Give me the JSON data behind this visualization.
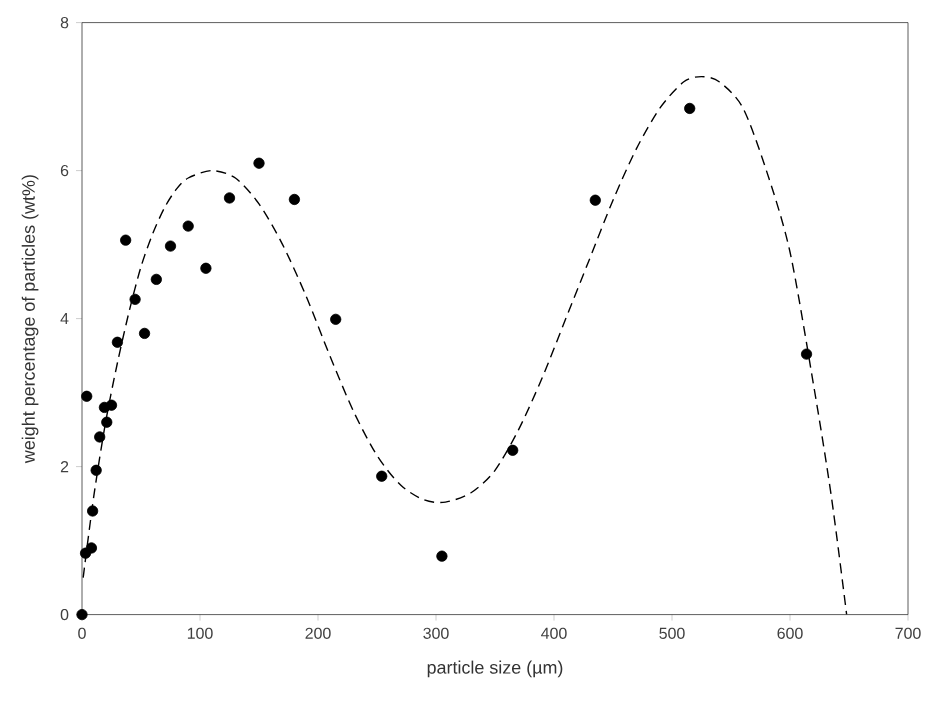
{
  "chart_data": {
    "type": "scatter",
    "xlabel": "particle size (µm)",
    "ylabel": "weight percentage of particles (wt%)",
    "xlim": [
      0,
      700
    ],
    "ylim": [
      0,
      8
    ],
    "xticks": [
      0,
      100,
      200,
      300,
      400,
      500,
      600,
      700
    ],
    "yticks": [
      0,
      2,
      4,
      6,
      8
    ],
    "grid": false,
    "series": [
      {
        "color": "#000000",
        "marker": "circle",
        "x": [
          0,
          4,
          3,
          8,
          9,
          12,
          15,
          19,
          21,
          25,
          30,
          37,
          45,
          53,
          63,
          75,
          90,
          105,
          125,
          150,
          180,
          215,
          254,
          305,
          365,
          435,
          515,
          614
        ],
        "values": [
          0,
          2.95,
          0.83,
          0.9,
          1.4,
          1.95,
          2.4,
          2.8,
          2.6,
          2.83,
          3.68,
          5.06,
          4.26,
          3.8,
          4.53,
          4.98,
          5.25,
          4.68,
          5.63,
          6.1,
          5.61,
          3.99,
          1.87,
          0.79,
          2.22,
          5.6,
          6.84,
          3.52
        ]
      },
      {
        "type": "line",
        "color": "#000000",
        "marker": "none",
        "line_style": "dashed",
        "x": [
          1,
          10,
          20,
          30,
          40,
          50,
          60,
          70,
          80,
          90,
          110,
          130,
          150,
          170,
          190,
          210,
          230,
          250,
          270,
          290,
          308,
          330,
          350,
          370,
          390,
          410,
          430,
          450,
          470,
          490,
          510,
          525,
          540,
          560,
          580,
          600,
          620,
          635,
          648
        ],
        "values": [
          0.5,
          1.6,
          2.6,
          3.4,
          4.1,
          4.7,
          5.15,
          5.5,
          5.75,
          5.9,
          6.0,
          5.9,
          5.55,
          5.0,
          4.3,
          3.5,
          2.75,
          2.15,
          1.75,
          1.55,
          1.52,
          1.65,
          1.95,
          2.5,
          3.2,
          4.0,
          4.8,
          5.6,
          6.3,
          6.85,
          7.2,
          7.27,
          7.2,
          6.85,
          6.0,
          4.9,
          3.1,
          1.6,
          0
        ]
      }
    ]
  }
}
